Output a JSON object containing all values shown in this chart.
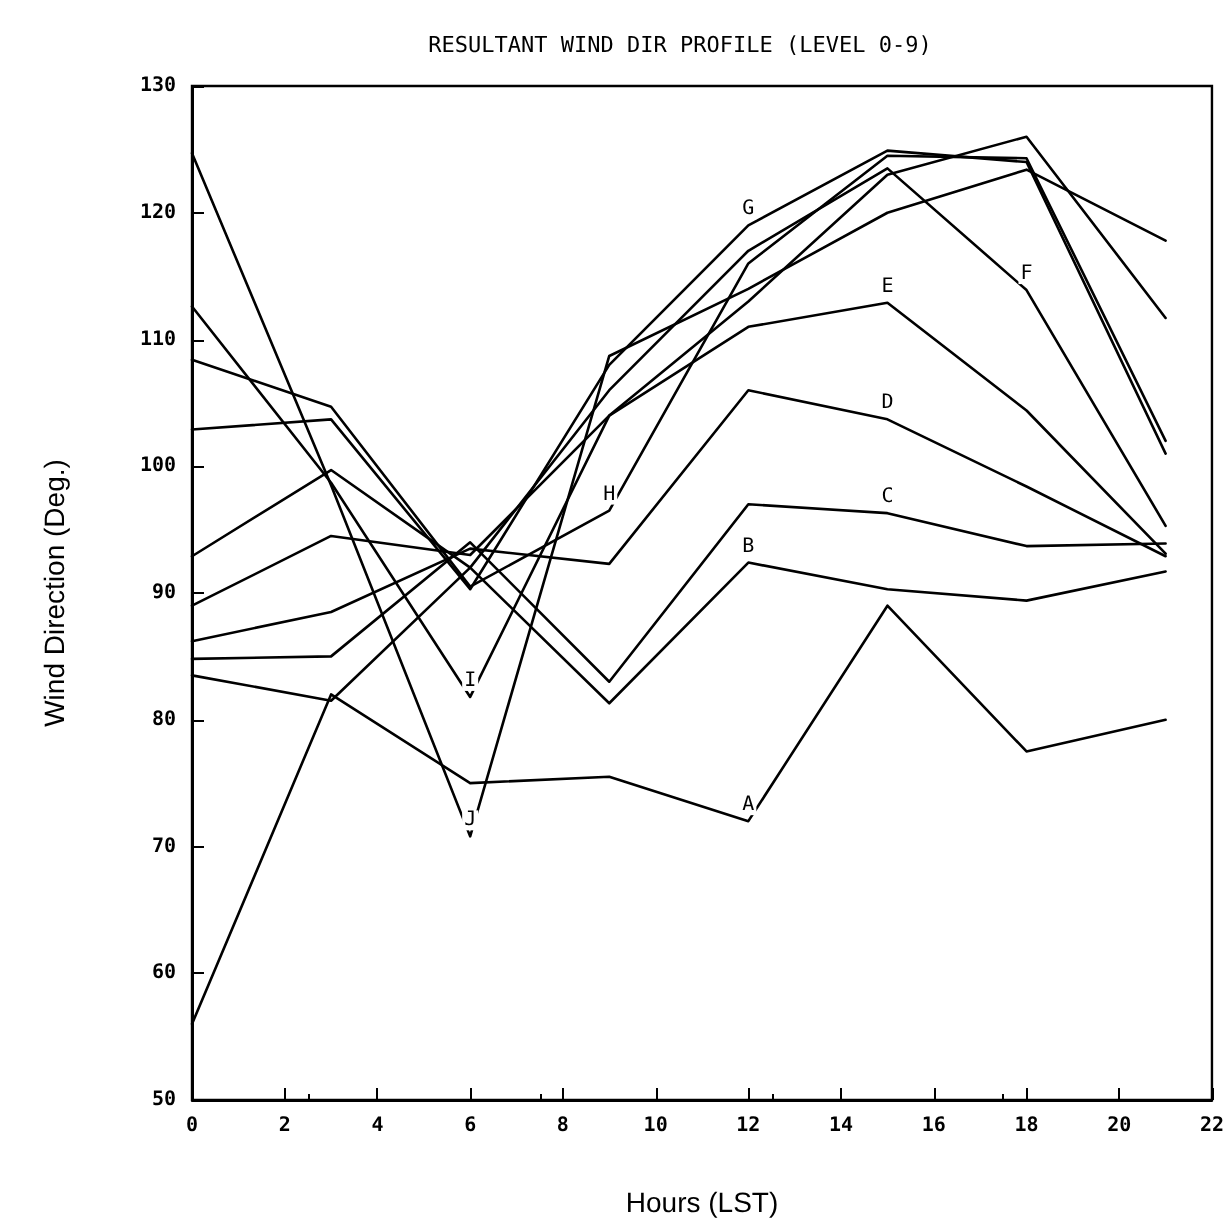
{
  "chart_data": {
    "type": "line",
    "title": "RESULTANT WIND DIR PROFILE (LEVEL 0-9)",
    "xlabel": "Hours (LST)",
    "ylabel": "Wind Direction (Deg.)",
    "x": [
      0,
      3,
      6,
      9,
      12,
      15,
      18,
      21
    ],
    "xlim": [
      0,
      22
    ],
    "xticks": [
      0,
      2,
      4,
      6,
      8,
      10,
      12,
      14,
      16,
      18,
      20,
      22
    ],
    "ylim": [
      50,
      130
    ],
    "yticks": [
      50,
      60,
      70,
      80,
      90,
      100,
      110,
      120,
      130
    ],
    "grid": false,
    "legend": false,
    "series": [
      {
        "name": "A",
        "color": "#000000",
        "values": [
          56,
          82,
          75,
          75.5,
          72,
          89,
          77.5,
          80
        ]
      },
      {
        "name": "B",
        "color": "#000000",
        "values": [
          83.5,
          81.5,
          92,
          81.3,
          92.4,
          90.3,
          89.4,
          91.7
        ]
      },
      {
        "name": "C",
        "color": "#000000",
        "values": [
          84.8,
          85,
          94,
          83,
          97,
          96.3,
          93.7,
          93.9
        ]
      },
      {
        "name": "D",
        "color": "#000000",
        "values": [
          86.2,
          88.5,
          93.5,
          92.3,
          106,
          103.7,
          98.4,
          92.9
        ]
      },
      {
        "name": "E",
        "color": "#000000",
        "values": [
          89,
          94.5,
          93,
          104,
          111,
          112.9,
          104.4,
          93.1
        ]
      },
      {
        "name": "F",
        "color": "#000000",
        "values": [
          92.9,
          99.7,
          92,
          106,
          117,
          123.5,
          113.9,
          95.3
        ]
      },
      {
        "name": "G",
        "color": "#000000",
        "values": [
          102.9,
          103.7,
          90.3,
          108,
          119,
          124.9,
          124,
          101
        ]
      },
      {
        "name": "H",
        "color": "#000000",
        "values": [
          108.4,
          104.7,
          90.5,
          96.5,
          116,
          124.5,
          124.3,
          102
        ]
      },
      {
        "name": "I",
        "color": "#000000",
        "values": [
          112.6,
          98.7,
          81.8,
          104,
          113,
          123,
          126,
          111.7
        ]
      },
      {
        "name": "J",
        "color": "#000000",
        "values": [
          124.7,
          98.5,
          70.8,
          108.7,
          114,
          120,
          123.4,
          117.8
        ]
      }
    ]
  }
}
